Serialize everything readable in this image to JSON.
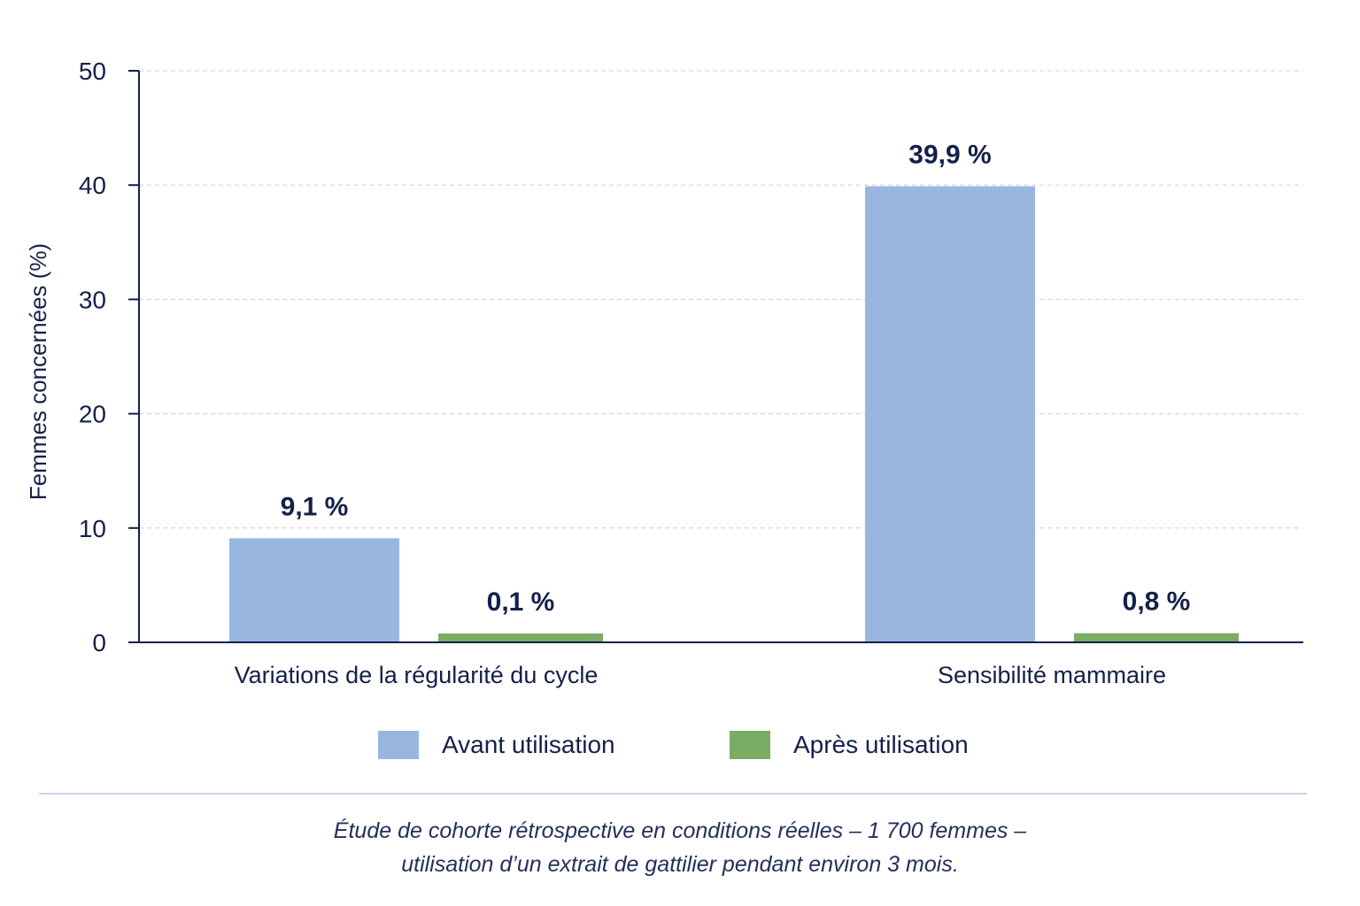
{
  "chart_data": {
    "type": "bar",
    "title": "",
    "xlabel": "",
    "ylabel": "Femmes concernées (%)",
    "ylim": [
      0,
      50
    ],
    "yticks": [
      0,
      10,
      20,
      30,
      40,
      50
    ],
    "grid": true,
    "legend_position": "bottom",
    "categories": [
      "Variations de la régularité du cycle",
      "Sensibilité mammaire"
    ],
    "series": [
      {
        "name": "Avant utilisation",
        "color": "#98b6e0",
        "values": [
          9.1,
          39.9
        ],
        "labels": [
          "9,1 %",
          "39,9 %"
        ]
      },
      {
        "name": "Après utilisation",
        "color": "#7aac64",
        "values": [
          0.1,
          0.8
        ],
        "labels": [
          "0,1 %",
          "0,8 %"
        ]
      }
    ]
  },
  "caption": {
    "line1": "Étude de cohorte rétrospective en conditions réelles – 1 700 femmes –",
    "line2": "utilisation d’un extrait de gattilier pendant environ 3 mois."
  }
}
